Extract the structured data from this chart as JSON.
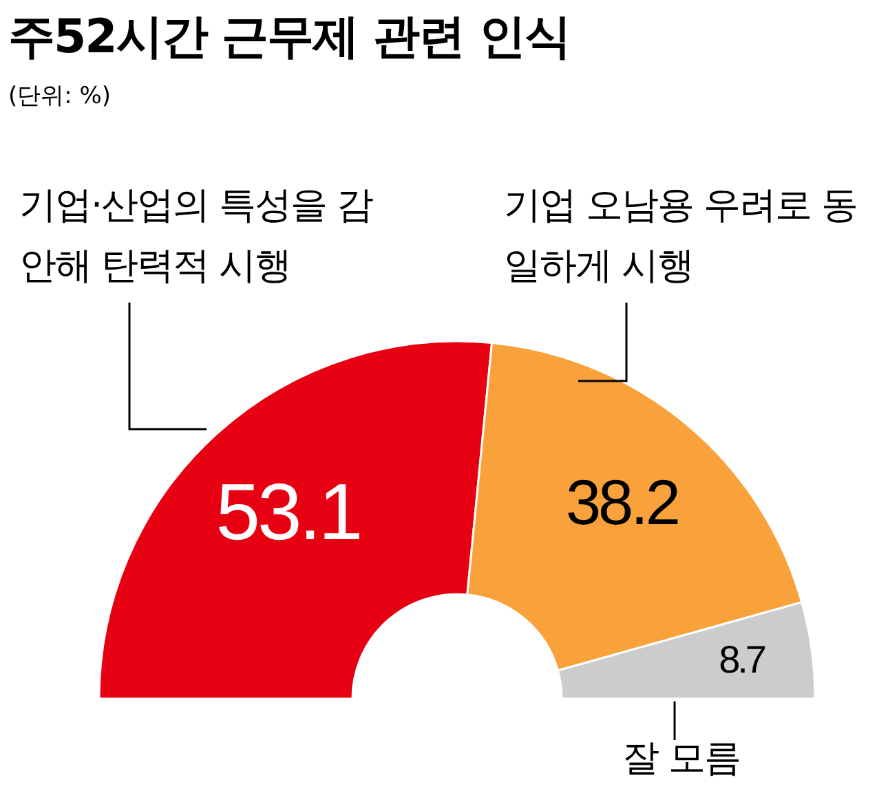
{
  "chart_data": {
    "type": "donut",
    "title": "주52시간 근무제 관련 인식",
    "subtitle": "(단위: %)",
    "categories": [
      "기업·산업의 특성을 감안해 탄력적 시행",
      "기업 오남용 우려로 동일하게 시행",
      "잘 모름"
    ],
    "values": [
      53.1,
      38.2,
      8.7
    ],
    "colors": [
      "#e60012",
      "#f9a13a",
      "#cccccc"
    ],
    "data_labels": true
  }
}
